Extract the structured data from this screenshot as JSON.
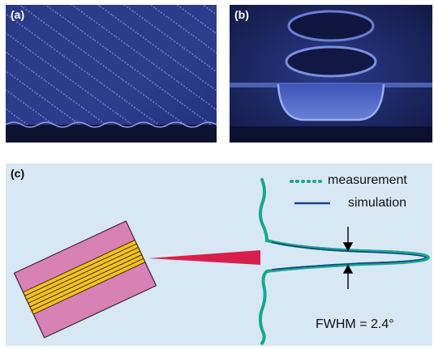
{
  "panels": {
    "a": {
      "label": "(a)"
    },
    "b": {
      "label": "(b)"
    },
    "c": {
      "label": "(c)"
    }
  },
  "legend": {
    "measurement": "measurement",
    "simulation": "simulation"
  },
  "annotation": {
    "fwhm": "FWHM = 2.4°"
  },
  "colors": {
    "sem_background": "#27367f",
    "panel_c_background": "#d7e8f4",
    "measurement_dots": "#17a78f",
    "simulation_line": "#1d3f8a",
    "beam": "#d81e4b",
    "chip_body": "#d881b5",
    "waveguide_stripes": "#f3c21a"
  }
}
